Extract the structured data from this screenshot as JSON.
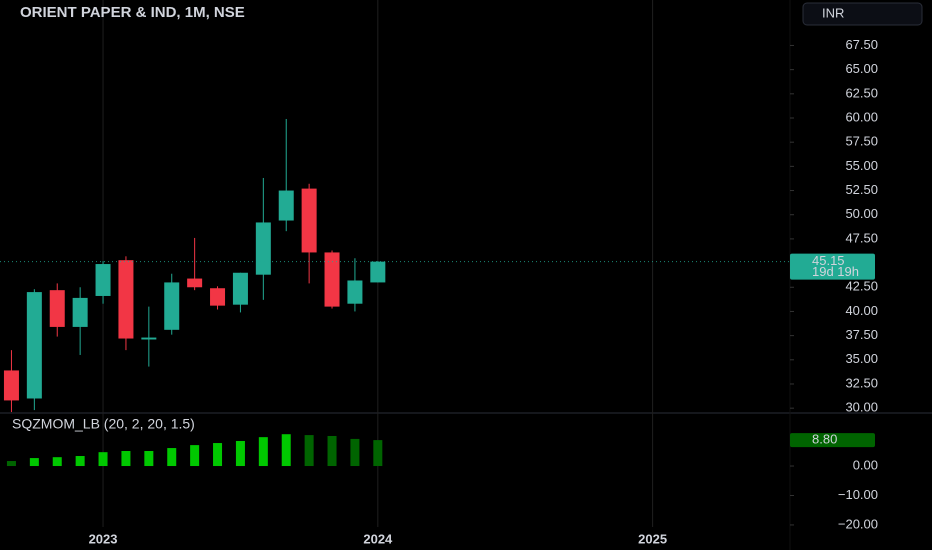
{
  "chart_data": [
    {
      "type": "candlestick",
      "title": "ORIENT PAPER & IND, 1M, NSE",
      "currency": "INR",
      "x": [
        0,
        1,
        2,
        3,
        4,
        5,
        6,
        7,
        8,
        9,
        10,
        11,
        12,
        13,
        14,
        15,
        16
      ],
      "open": [
        33.9,
        31.0,
        42.2,
        38.4,
        41.6,
        45.3,
        37.1,
        38.1,
        43.4,
        42.4,
        40.7,
        43.8,
        49.4,
        52.7,
        46.1,
        40.8,
        43.0
      ],
      "high": [
        36.0,
        42.3,
        42.9,
        42.5,
        45.2,
        45.7,
        40.5,
        43.9,
        47.6,
        42.6,
        44.0,
        53.8,
        59.9,
        53.2,
        46.3,
        45.5,
        45.2
      ],
      "low": [
        29.6,
        29.8,
        37.4,
        35.5,
        40.8,
        36.0,
        34.3,
        37.6,
        42.2,
        40.2,
        39.9,
        41.2,
        48.3,
        42.9,
        40.3,
        40.0,
        43.0
      ],
      "close": [
        30.8,
        42.0,
        38.4,
        41.4,
        44.9,
        37.2,
        37.3,
        43.0,
        42.5,
        40.6,
        44.0,
        49.2,
        52.5,
        46.1,
        40.5,
        43.2,
        45.15
      ],
      "up_color": "#22ab94",
      "down_color": "#f23645",
      "countdown": "19d 19h",
      "xlim": [
        -0.5,
        34
      ],
      "xticks": [
        {
          "value": 4,
          "label": "2023"
        },
        {
          "value": 16,
          "label": "2024"
        },
        {
          "value": 28,
          "label": "2025"
        }
      ],
      "ylim": [
        29.5,
        72.2
      ],
      "yticks": [
        {
          "value": 30,
          "label": "30.00"
        },
        {
          "value": 32.5,
          "label": "32.50"
        },
        {
          "value": 35,
          "label": "35.00"
        },
        {
          "value": 37.5,
          "label": "37.50"
        },
        {
          "value": 40,
          "label": "40.00"
        },
        {
          "value": 42.5,
          "label": "42.50"
        },
        {
          "value": 47.5,
          "label": "47.50"
        },
        {
          "value": 50,
          "label": "50.00"
        },
        {
          "value": 52.5,
          "label": "52.50"
        },
        {
          "value": 55,
          "label": "55.00"
        },
        {
          "value": 57.5,
          "label": "57.50"
        },
        {
          "value": 60,
          "label": "60.00"
        },
        {
          "value": 62.5,
          "label": "62.50"
        },
        {
          "value": 65,
          "label": "65.00"
        },
        {
          "value": 67.5,
          "label": "67.50"
        }
      ]
    },
    {
      "type": "bar",
      "title": "SQZMOM_LB (20, 2, 20, 1.5)",
      "x": [
        0,
        1,
        2,
        3,
        4,
        5,
        6,
        7,
        8,
        9,
        10,
        11,
        12,
        13,
        14,
        15,
        16
      ],
      "values": [
        1.7,
        2.7,
        3.0,
        3.4,
        4.7,
        5.1,
        5.1,
        6.1,
        7.1,
        7.8,
        8.5,
        9.8,
        10.8,
        10.5,
        10.2,
        9.2,
        8.8
      ],
      "colors": [
        "#006400",
        "#00c800",
        "#00c800",
        "#00c800",
        "#00c800",
        "#00c800",
        "#00c800",
        "#00c800",
        "#00c800",
        "#00c800",
        "#00c800",
        "#00c800",
        "#00c800",
        "#006400",
        "#006400",
        "#006400",
        "#006400"
      ],
      "last_value_label": "8.80",
      "ylim": [
        -20.7,
        18
      ],
      "yticks": [
        {
          "value": 0,
          "label": "0.00"
        },
        {
          "value": -10,
          "label": "−10.00"
        },
        {
          "value": -20,
          "label": "−20.00"
        }
      ]
    }
  ]
}
